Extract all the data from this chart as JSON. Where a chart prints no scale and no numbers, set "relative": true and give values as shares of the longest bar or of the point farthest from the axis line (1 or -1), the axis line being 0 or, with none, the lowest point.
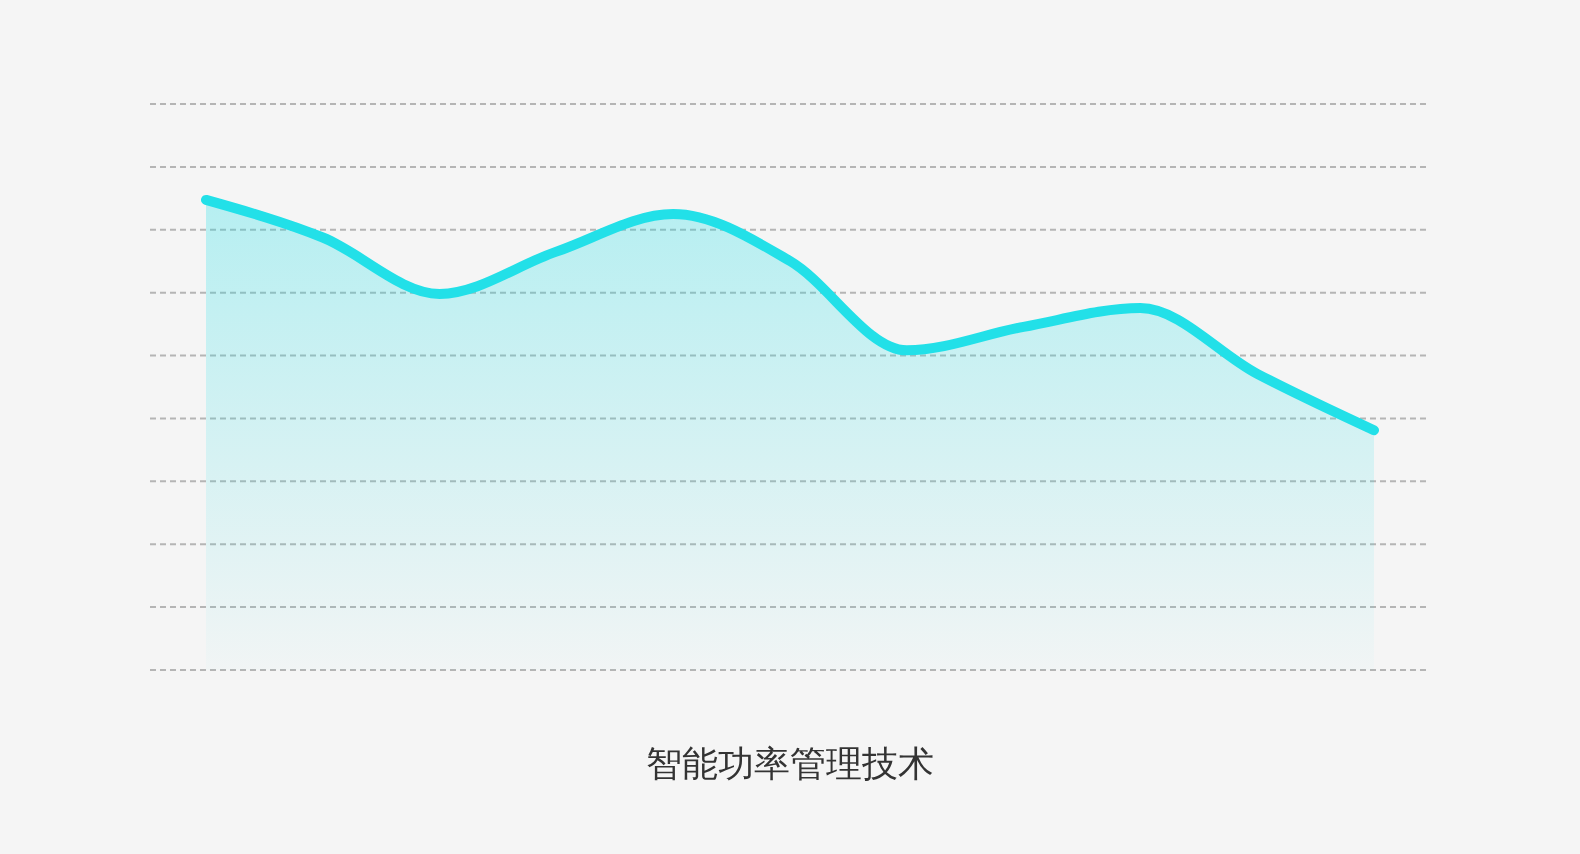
{
  "chart_data": {
    "type": "area",
    "title": "智能功率管理技术",
    "relative": true,
    "grid": "y",
    "categories": [
      null,
      null,
      null,
      null,
      null,
      null,
      null,
      null,
      null,
      null,
      null
    ],
    "series": [
      {
        "color": "#22e0e8",
        "values": [
          1,
          0.92,
          0.8,
          0.89,
          0.97,
          0.87,
          0.68,
          0.73,
          0.77,
          0.63,
          0.51
        ]
      }
    ]
  }
}
